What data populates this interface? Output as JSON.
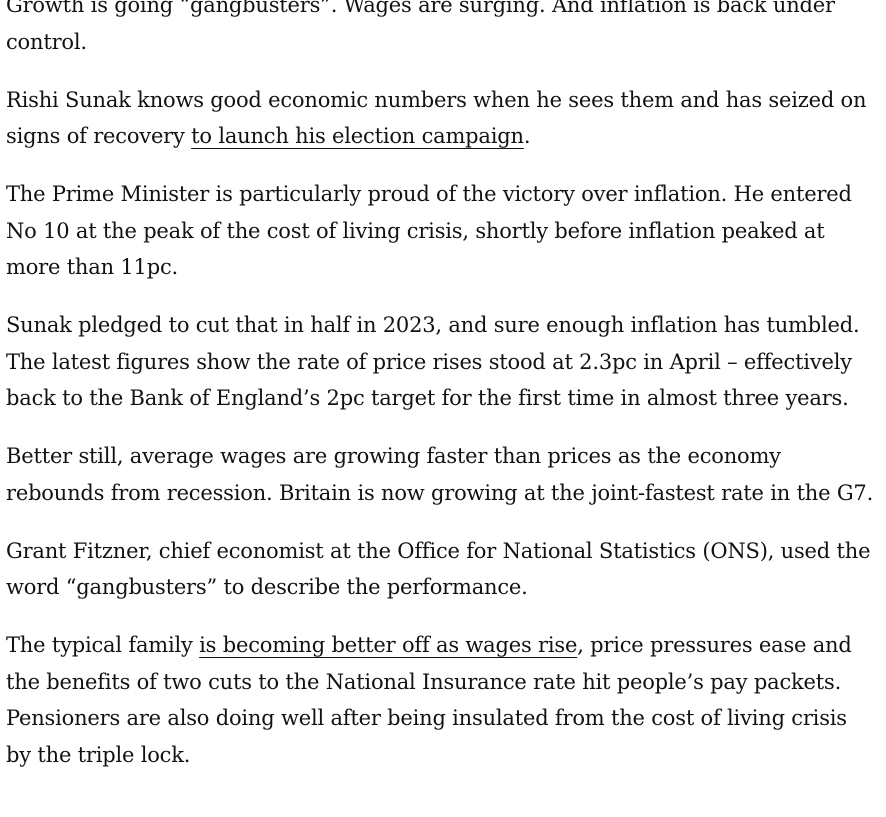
{
  "article": {
    "p1": {
      "text": "Growth is going “gangbusters”. Wages are surging. And inflation is back under control."
    },
    "p2": {
      "before": "Rishi Sunak knows good economic numbers when he sees them and has seized on signs of recovery ",
      "link": "to launch his election campaign",
      "after": "."
    },
    "p3": {
      "text": "The Prime Minister is particularly proud of the victory over inflation. He entered No 10 at the peak of the cost of living crisis, shortly before inflation peaked at more than 11pc."
    },
    "p4": {
      "text": "Sunak pledged to cut that in half in 2023, and sure enough inflation has tumbled. The latest figures show the rate of price rises stood at 2.3pc in April – effectively back to the Bank of England’s 2pc target for the first time in almost three years."
    },
    "p5": {
      "text": "Better still, average wages are growing faster than prices as the economy rebounds from recession. Britain is now growing at the joint-fastest rate in the G7."
    },
    "p6": {
      "text": "Grant Fitzner, chief economist at the Office for National Statistics (ONS), used the word “gangbusters” to describe the performance."
    },
    "p7": {
      "before": "The typical family ",
      "link": "is becoming better off as wages rise",
      "after": ", price pressures ease and the benefits of two cuts to the National Insurance rate hit people’s pay packets. Pensioners are also doing well after being insulated from the cost of living crisis by the triple lock."
    }
  }
}
